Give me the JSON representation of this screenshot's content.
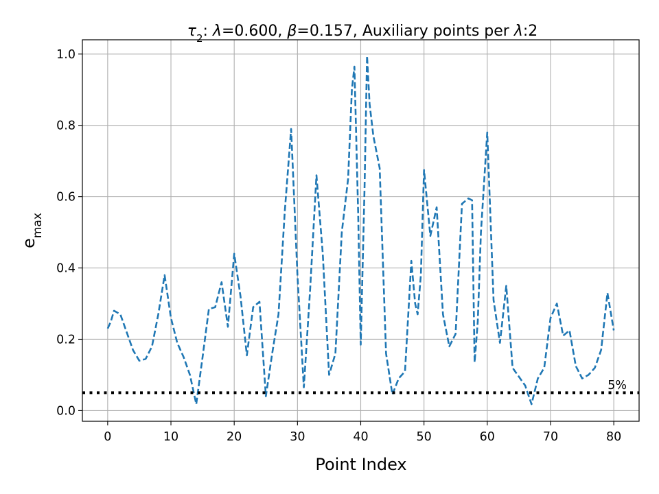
{
  "chart_data": {
    "type": "line",
    "title": {
      "parts": [
        {
          "text": "τ",
          "italic": true
        },
        {
          "text": "2",
          "sub": true
        },
        {
          "text": ": "
        },
        {
          "text": "λ",
          "italic": true
        },
        {
          "text": "=0.600, "
        },
        {
          "text": "β",
          "italic": true
        },
        {
          "text": "=0.157, Auxiliary points per "
        },
        {
          "text": "λ",
          "italic": true
        },
        {
          "text": ":2"
        }
      ]
    },
    "xlabel": "Point Index",
    "ylabel": {
      "main": "e",
      "sub": "max"
    },
    "xlim": [
      -4,
      84
    ],
    "ylim": [
      -0.03,
      1.04
    ],
    "xticks": [
      0,
      10,
      20,
      30,
      40,
      50,
      60,
      70,
      80
    ],
    "yticks": [
      0.0,
      0.2,
      0.4,
      0.6,
      0.8,
      1.0
    ],
    "ytick_labels": [
      "0.0",
      "0.2",
      "0.4",
      "0.6",
      "0.8",
      "1.0"
    ],
    "grid": true,
    "series": [
      {
        "style": "dashed",
        "color": "#1f77b4",
        "x": [
          0,
          0.5,
          1,
          2,
          3,
          4,
          5,
          6,
          7,
          8,
          9,
          10,
          11,
          12,
          13,
          14,
          15,
          16,
          17,
          18,
          19,
          20,
          21,
          22,
          23,
          24,
          25,
          26,
          27,
          28,
          29,
          30,
          31,
          32,
          33,
          34,
          35,
          36,
          37,
          38,
          38.6,
          39,
          39.6,
          40,
          40.6,
          41,
          41.4,
          42,
          43,
          44,
          45,
          46,
          47,
          48,
          48.6,
          49,
          49.5,
          50,
          51,
          52,
          53,
          54,
          55,
          56,
          57,
          57.6,
          58,
          58.5,
          59,
          60,
          61,
          62,
          63,
          64,
          65,
          66,
          67,
          68,
          69,
          70,
          71,
          72,
          73,
          74,
          75,
          76,
          77,
          78,
          79,
          80
        ],
        "y": [
          0.23,
          0.25,
          0.28,
          0.27,
          0.22,
          0.17,
          0.14,
          0.145,
          0.18,
          0.27,
          0.38,
          0.26,
          0.19,
          0.15,
          0.1,
          0.018,
          0.15,
          0.285,
          0.29,
          0.36,
          0.235,
          0.44,
          0.32,
          0.155,
          0.29,
          0.305,
          0.04,
          0.16,
          0.27,
          0.56,
          0.79,
          0.38,
          0.065,
          0.34,
          0.66,
          0.44,
          0.1,
          0.16,
          0.5,
          0.65,
          0.9,
          0.965,
          0.55,
          0.185,
          0.62,
          0.995,
          0.86,
          0.77,
          0.68,
          0.16,
          0.045,
          0.09,
          0.11,
          0.42,
          0.3,
          0.27,
          0.38,
          0.675,
          0.49,
          0.57,
          0.27,
          0.18,
          0.215,
          0.58,
          0.595,
          0.59,
          0.135,
          0.25,
          0.5,
          0.78,
          0.31,
          0.19,
          0.35,
          0.12,
          0.095,
          0.07,
          0.018,
          0.09,
          0.12,
          0.26,
          0.3,
          0.21,
          0.225,
          0.125,
          0.09,
          0.1,
          0.12,
          0.17,
          0.33,
          0.225
        ]
      },
      {
        "style": "dotted",
        "color": "#000000",
        "y_const": 0.05,
        "label": "5%"
      }
    ]
  }
}
